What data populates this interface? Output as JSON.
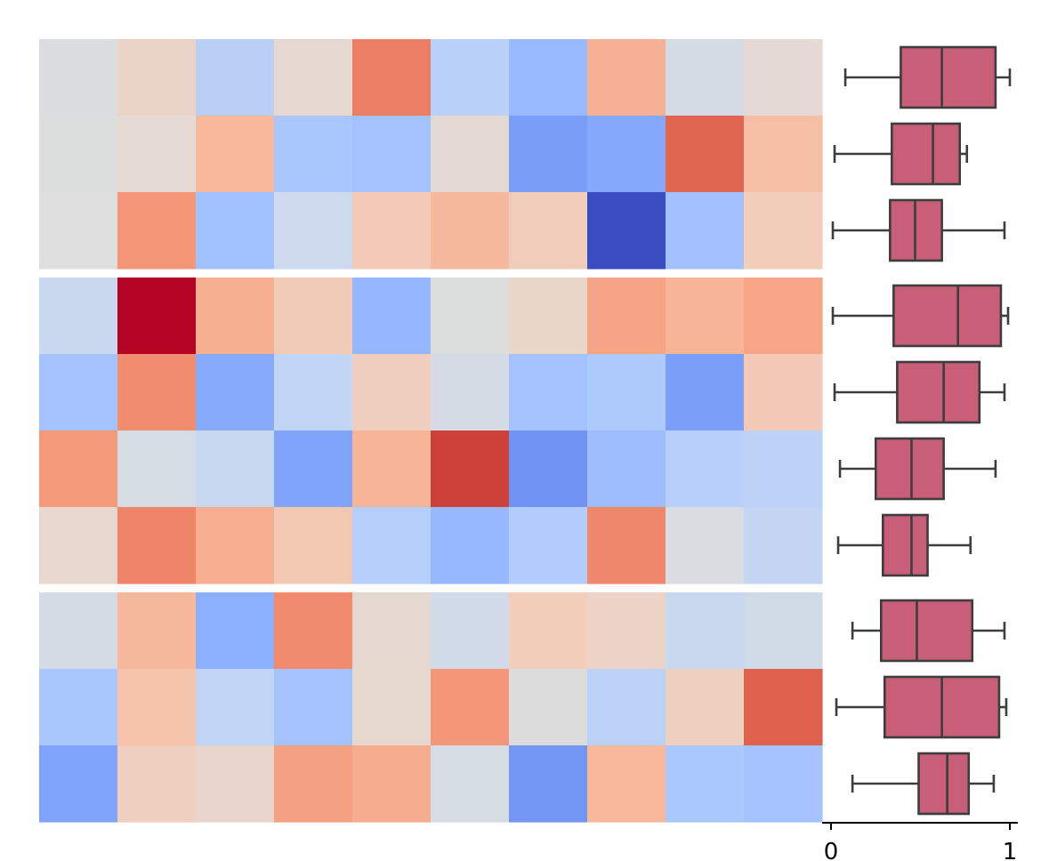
{
  "chart_data": [
    {
      "type": "heatmap",
      "colormap": "coolwarm",
      "groups": [
        {
          "rows": [
            [
              "#dadce0",
              "#ead4c8",
              "#b9cff6",
              "#e6d7d0",
              "#ec7f63",
              "#b9d0f9",
              "#98b9ff",
              "#f6b093",
              "#d5dbe5",
              "#e4d9d5"
            ],
            [
              "#dcdddd",
              "#e6dad4",
              "#f7b89c",
              "#aac7fd",
              "#a3c2fe",
              "#e4d9d2",
              "#7a9df8",
              "#85a8fc",
              "#e06651",
              "#f6bea3"
            ],
            [
              "#dedede",
              "#f39778",
              "#a2c1ff",
              "#cdd9ec",
              "#f2cab5",
              "#f6b89c",
              "#f0cdbb",
              "#3b4cc0",
              "#a3c1ff",
              "#f1cdba"
            ]
          ]
        },
        {
          "rows": [
            [
              "#cad8ef",
              "#b40426",
              "#f7af91",
              "#f2cbb7",
              "#96b7ff",
              "#dcdddd",
              "#ead5c9",
              "#f5a486",
              "#f7b497",
              "#f6a586"
            ],
            [
              "#a3c2fe",
              "#f18d6f",
              "#86a9fc",
              "#c3d5f4",
              "#efcebd",
              "#d5dbe5",
              "#a3c2fe",
              "#aec9fc",
              "#7b9ff9",
              "#f2c9b4"
            ],
            [
              "#f49a7b",
              "#d6dce4",
              "#c7d7f0",
              "#81a4fb",
              "#f7b497",
              "#cc403a",
              "#6f92f3",
              "#9dbdff",
              "#b7cff9",
              "#bcd2f7"
            ],
            [
              "#e7d7ce",
              "#ee8468",
              "#f7ad90",
              "#f3c8b2",
              "#b6cefa",
              "#97b8ff",
              "#b2ccfb",
              "#ef886b",
              "#d9dce1",
              "#c4d5f3"
            ]
          ]
        },
        {
          "rows": [
            [
              "#d5dbe5",
              "#f5b89d",
              "#8caffe",
              "#f08b6e",
              "#e5d8d1",
              "#d1dae9",
              "#f1cdba",
              "#ecd3c5",
              "#cad8ef",
              "#d0dae7"
            ],
            [
              "#a9c6fd",
              "#f5c2aa",
              "#c1d4f4",
              "#a3c2fe",
              "#e6d7cf",
              "#f39778",
              "#dddcdc",
              "#bbd1f8",
              "#eed0c0",
              "#de614d"
            ],
            [
              "#80a3fa",
              "#efcfbf",
              "#e8d6cc",
              "#f4a183",
              "#f6ac8f",
              "#d6dce4",
              "#7396f5",
              "#f7b89c",
              "#abc8fd",
              "#a5c3fe"
            ]
          ]
        }
      ]
    },
    {
      "type": "boxplot",
      "orientation": "horizontal",
      "color": "#c85e78",
      "xlim": [
        0,
        1
      ],
      "x_ticks": [
        "0",
        "1"
      ],
      "boxes": [
        {
          "min": 0.08,
          "q1": 0.39,
          "median": 0.62,
          "q3": 0.92,
          "max": 1.0
        },
        {
          "min": 0.02,
          "q1": 0.34,
          "median": 0.57,
          "q3": 0.72,
          "max": 0.76
        },
        {
          "min": 0.01,
          "q1": 0.33,
          "median": 0.47,
          "q3": 0.62,
          "max": 0.97
        },
        {
          "min": 0.01,
          "q1": 0.35,
          "median": 0.71,
          "q3": 0.95,
          "max": 0.99
        },
        {
          "min": 0.02,
          "q1": 0.37,
          "median": 0.63,
          "q3": 0.83,
          "max": 0.97
        },
        {
          "min": 0.05,
          "q1": 0.25,
          "median": 0.45,
          "q3": 0.63,
          "max": 0.92
        },
        {
          "min": 0.04,
          "q1": 0.29,
          "median": 0.45,
          "q3": 0.54,
          "max": 0.78
        },
        {
          "min": 0.12,
          "q1": 0.28,
          "median": 0.48,
          "q3": 0.79,
          "max": 0.97
        },
        {
          "min": 0.03,
          "q1": 0.3,
          "median": 0.62,
          "q3": 0.94,
          "max": 0.98
        },
        {
          "min": 0.12,
          "q1": 0.49,
          "median": 0.65,
          "q3": 0.77,
          "max": 0.91
        }
      ]
    }
  ]
}
